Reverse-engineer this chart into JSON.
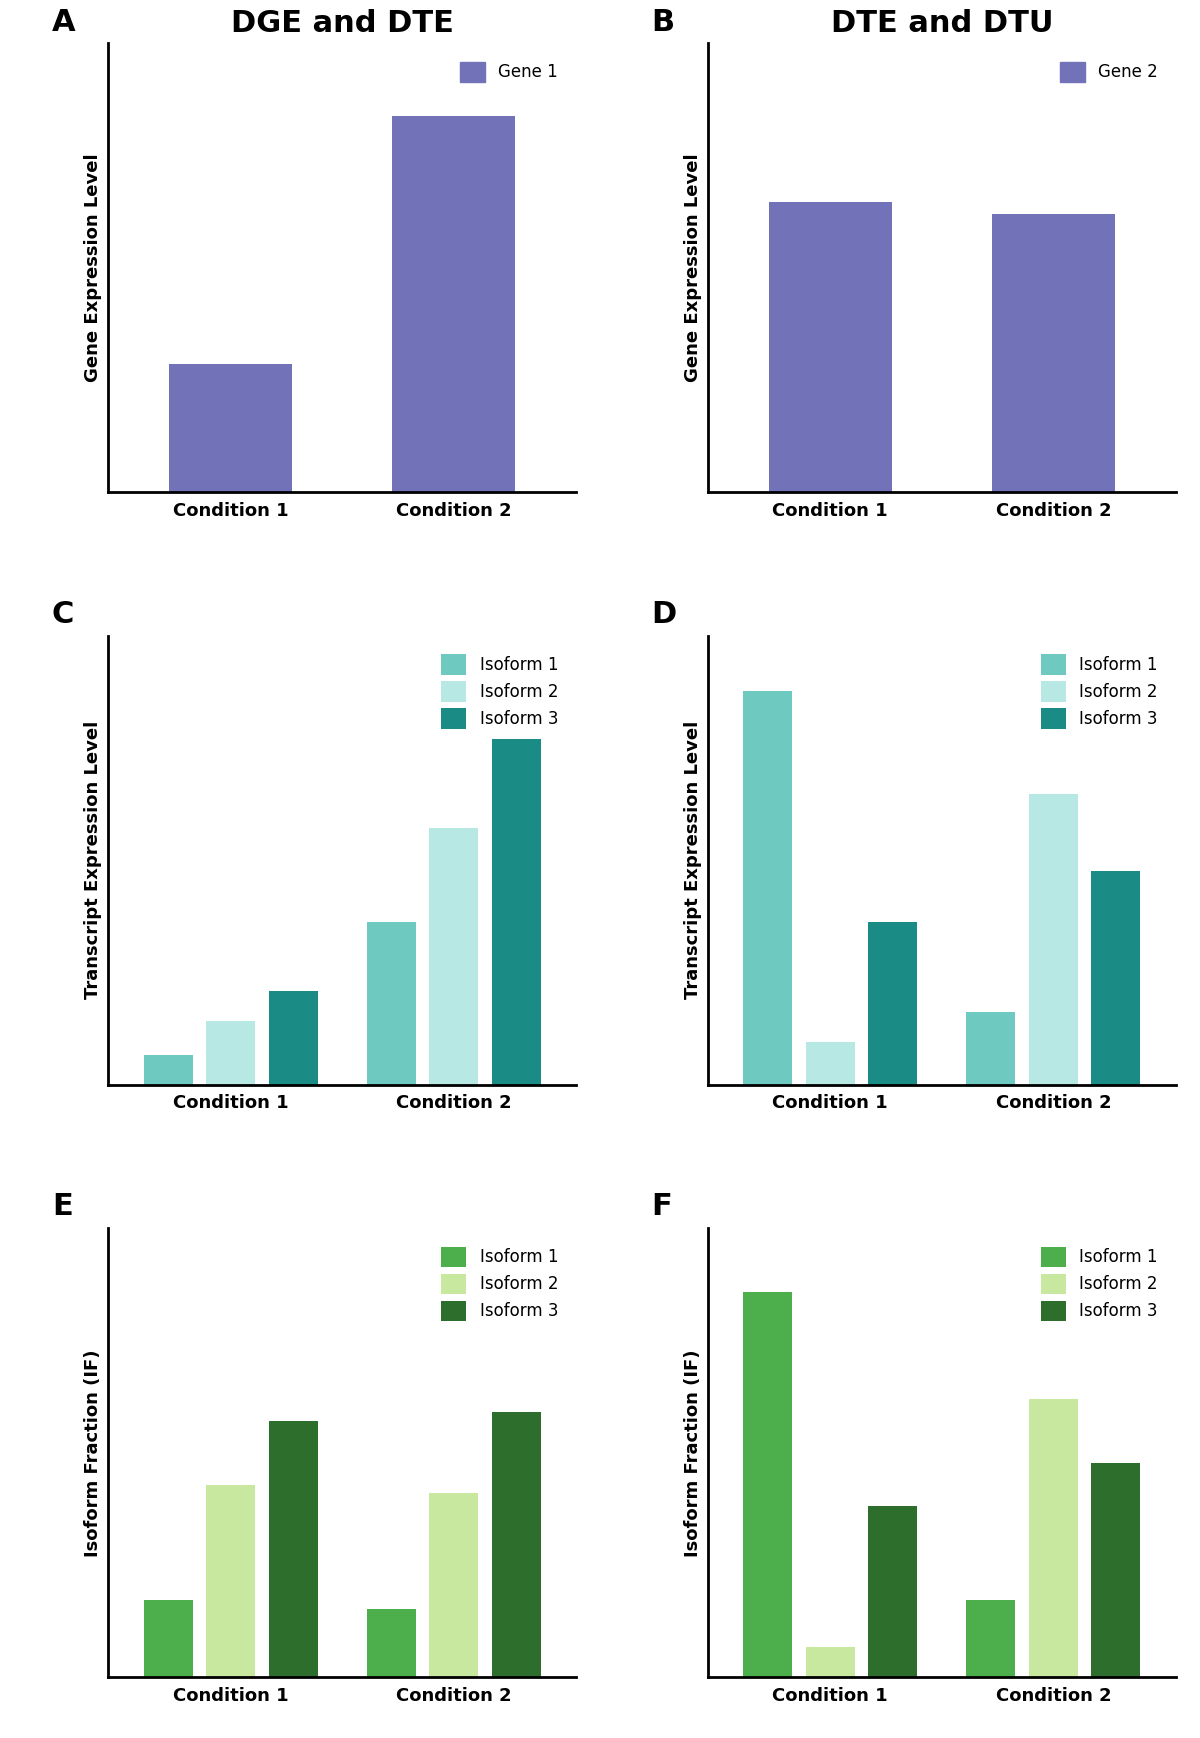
{
  "panel_A": {
    "title": "DGE and DTE",
    "label": "A",
    "ylabel": "Gene Expression Level",
    "categories": [
      "Condition 1",
      "Condition 2"
    ],
    "values": [
      0.3,
      0.88
    ],
    "bar_color": "#7272b8",
    "legend_label": "Gene 1"
  },
  "panel_B": {
    "title": "DTE and DTU",
    "label": "B",
    "ylabel": "Gene Expression Level",
    "categories": [
      "Condition 1",
      "Condition 2"
    ],
    "values": [
      0.68,
      0.65
    ],
    "bar_color": "#7272b8",
    "legend_label": "Gene 2"
  },
  "panel_C": {
    "label": "C",
    "ylabel": "Transcript Expression Level",
    "categories": [
      "Condition 1",
      "Condition 2"
    ],
    "isoforms": [
      "Isoform 1",
      "Isoform 2",
      "Isoform 3"
    ],
    "colors": [
      "#6ec9c0",
      "#b8e8e3",
      "#1a8c85"
    ],
    "values_cond1": [
      0.07,
      0.15,
      0.22
    ],
    "values_cond2": [
      0.38,
      0.6,
      0.92
    ]
  },
  "panel_D": {
    "label": "D",
    "ylabel": "Transcript Expression Level",
    "categories": [
      "Condition 1",
      "Condition 2"
    ],
    "isoforms": [
      "Isoform 1",
      "Isoform 2",
      "Isoform 3"
    ],
    "colors": [
      "#6ec9c0",
      "#b8e8e3",
      "#1a8c85"
    ],
    "values_cond1": [
      0.92,
      0.1,
      0.38
    ],
    "values_cond2": [
      0.17,
      0.68,
      0.5
    ]
  },
  "panel_E": {
    "label": "E",
    "ylabel": "Isoform Fraction (IF)",
    "categories": [
      "Condition 1",
      "Condition 2"
    ],
    "isoforms": [
      "Isoform 1",
      "Isoform 2",
      "Isoform 3"
    ],
    "colors": [
      "#4caf4c",
      "#c8e8a0",
      "#2d6e2d"
    ],
    "values_cond1": [
      0.18,
      0.45,
      0.6
    ],
    "values_cond2": [
      0.16,
      0.43,
      0.62
    ]
  },
  "panel_F": {
    "label": "F",
    "ylabel": "Isoform Fraction (IF)",
    "categories": [
      "Condition 1",
      "Condition 2"
    ],
    "isoforms": [
      "Isoform 1",
      "Isoform 2",
      "Isoform 3"
    ],
    "colors": [
      "#4caf4c",
      "#c8e8a0",
      "#2d6e2d"
    ],
    "values_cond1": [
      0.9,
      0.07,
      0.4
    ],
    "values_cond2": [
      0.18,
      0.65,
      0.5
    ]
  },
  "background_color": "#ffffff",
  "label_fontsize": 22,
  "title_fontsize": 22,
  "axis_label_fontsize": 13,
  "tick_fontsize": 13,
  "legend_fontsize": 12
}
